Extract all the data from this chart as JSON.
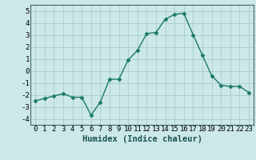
{
  "x": [
    0,
    1,
    2,
    3,
    4,
    5,
    6,
    7,
    8,
    9,
    10,
    11,
    12,
    13,
    14,
    15,
    16,
    17,
    18,
    19,
    20,
    21,
    22,
    23
  ],
  "y": [
    -2.5,
    -2.3,
    -2.1,
    -1.9,
    -2.2,
    -2.2,
    -3.7,
    -2.6,
    -0.7,
    -0.7,
    0.9,
    1.7,
    3.1,
    3.2,
    4.3,
    4.7,
    4.8,
    3.0,
    1.3,
    -0.4,
    -1.2,
    -1.3,
    -1.3,
    -1.8
  ],
  "line_color": "#1a7a6a",
  "marker": "D",
  "marker_size": 2.5,
  "bg_color": "#cce8e8",
  "grid_color": "#aacccc",
  "xlabel": "Humidex (Indice chaleur)",
  "ylim": [
    -4.5,
    5.5
  ],
  "xlim": [
    -0.5,
    23.5
  ],
  "yticks": [
    -4,
    -3,
    -2,
    -1,
    0,
    1,
    2,
    3,
    4,
    5
  ],
  "xticks": [
    0,
    1,
    2,
    3,
    4,
    5,
    6,
    7,
    8,
    9,
    10,
    11,
    12,
    13,
    14,
    15,
    16,
    17,
    18,
    19,
    20,
    21,
    22,
    23
  ],
  "xlabel_fontsize": 7.5,
  "tick_fontsize": 6.5,
  "line_width": 1.0
}
